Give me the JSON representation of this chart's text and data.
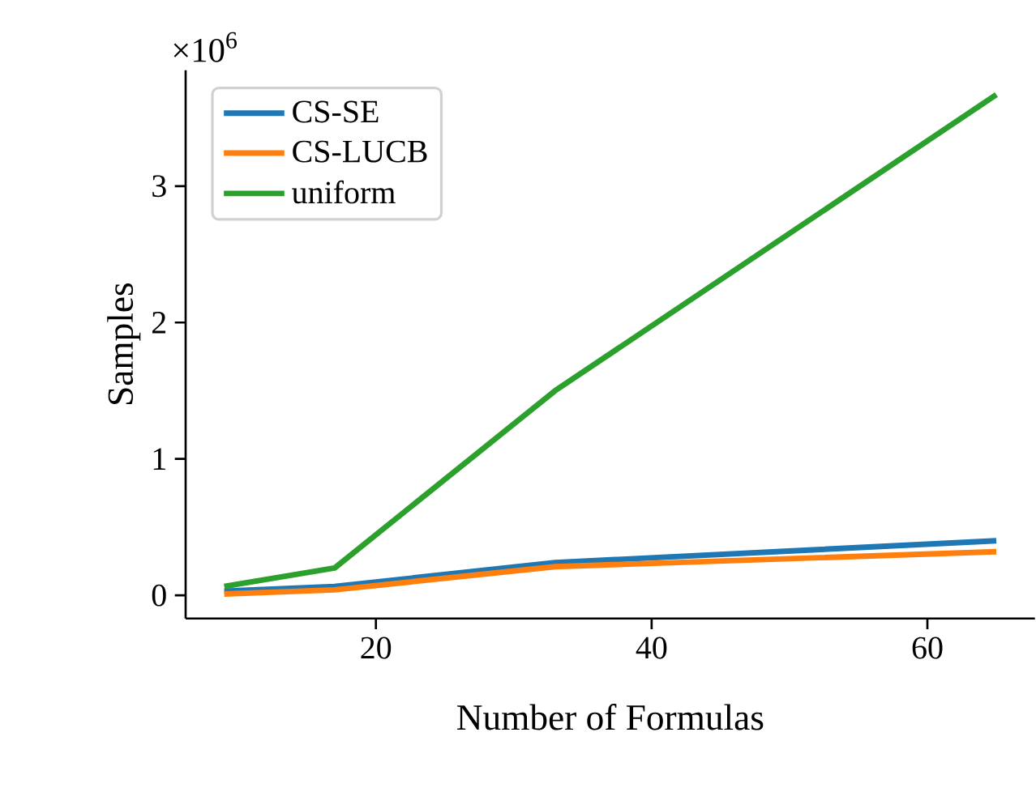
{
  "chart_data": {
    "type": "line",
    "xlabel": "Number of Formulas",
    "ylabel": "Samples",
    "x": [
      9,
      17,
      33,
      65
    ],
    "series": [
      {
        "name": "CS-SE",
        "color": "#1f77b4",
        "values": [
          0.03,
          0.065,
          0.24,
          0.4
        ]
      },
      {
        "name": "CS-LUCB",
        "color": "#ff7f0e",
        "values": [
          0.01,
          0.04,
          0.21,
          0.32
        ]
      },
      {
        "name": "uniform",
        "color": "#2ca02c",
        "values": [
          0.065,
          0.2,
          1.5,
          3.67
        ]
      }
    ],
    "xlim": [
      6.2,
      67.8
    ],
    "ylim": [
      -0.17,
      3.85
    ],
    "xticks": [
      20,
      40,
      60
    ],
    "yticks": [
      0,
      1,
      2,
      3
    ],
    "annotations": [
      "×10$^{6}$"
    ],
    "legend": "top left",
    "grid": false,
    "marker": "none",
    "line_style": "solid"
  }
}
